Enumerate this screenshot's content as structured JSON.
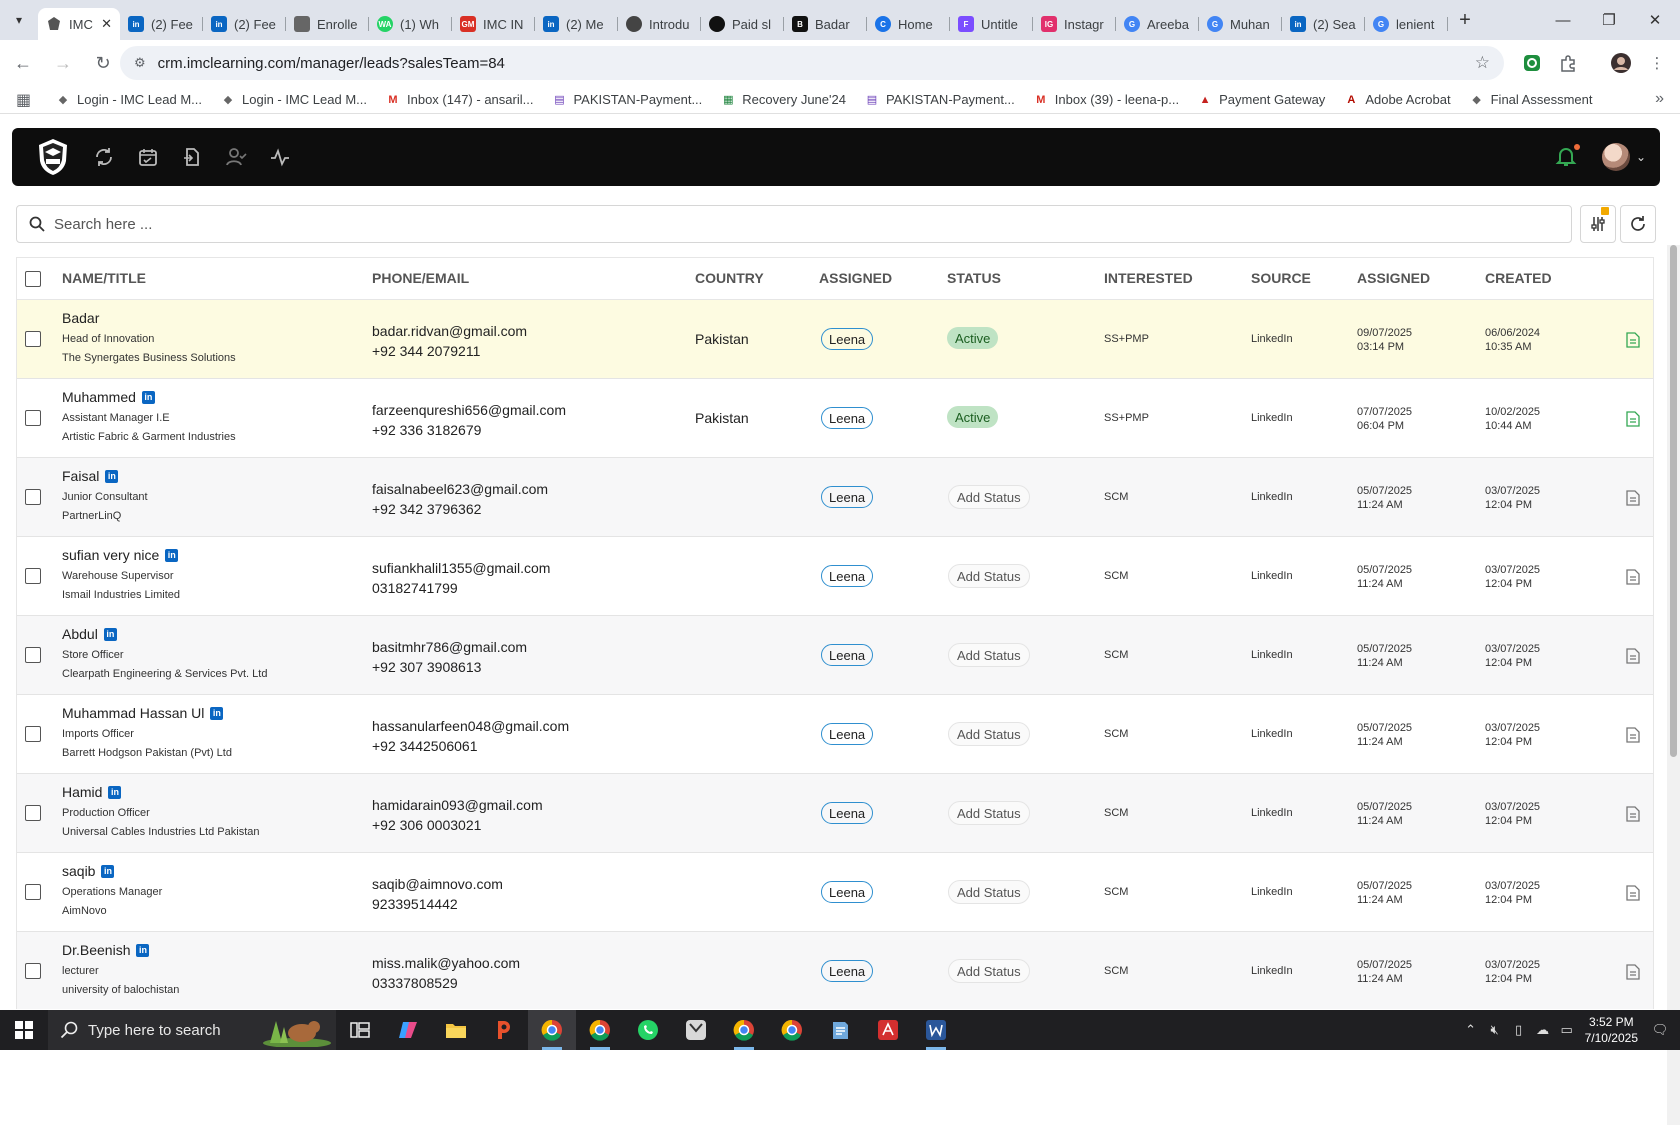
{
  "browser": {
    "active_tab": {
      "title": "IMC",
      "favicon_color": "#555555"
    },
    "tabs": [
      {
        "title": "(2) Fee",
        "favicon": "LI",
        "color": "#0a66c2"
      },
      {
        "title": "(2) Fee",
        "favicon": "LI",
        "color": "#0a66c2"
      },
      {
        "title": "Enrolle",
        "favicon": "IMC",
        "color": "#666666"
      },
      {
        "title": "(1) Wh",
        "favicon": "WA",
        "color": "#25d366"
      },
      {
        "title": "IMC IN",
        "favicon": "GM",
        "color": "#d93025"
      },
      {
        "title": "(2) Me",
        "favicon": "LI",
        "color": "#0a66c2"
      },
      {
        "title": "Introdu",
        "favicon": "GPT",
        "color": "#444444"
      },
      {
        "title": "Paid sl",
        "favicon": "GPT",
        "color": "#111111"
      },
      {
        "title": "Badar",
        "favicon": "B",
        "color": "#111111"
      },
      {
        "title": "Home",
        "favicon": "C",
        "color": "#1a73e8"
      },
      {
        "title": "Untitle",
        "favicon": "F",
        "color": "#7b4dff"
      },
      {
        "title": "Instagr",
        "favicon": "IG",
        "color": "#e1306c"
      },
      {
        "title": "Areeba",
        "favicon": "G",
        "color": "#4285f4"
      },
      {
        "title": "Muhan",
        "favicon": "G",
        "color": "#4285f4"
      },
      {
        "title": "(2) Sea",
        "favicon": "LI",
        "color": "#0a66c2"
      },
      {
        "title": "lenient",
        "favicon": "G",
        "color": "#4285f4"
      }
    ],
    "url": "crm.imclearning.com/manager/leads?salesTeam=84",
    "bookmarks": [
      {
        "label": "Login - IMC Lead M...",
        "color": "#666666",
        "glyph": "◆"
      },
      {
        "label": "Login - IMC Lead M...",
        "color": "#666666",
        "glyph": "◆"
      },
      {
        "label": "Inbox (147) - ansaril...",
        "color": "#d93025",
        "glyph": "M"
      },
      {
        "label": "PAKISTAN-Payment...",
        "color": "#673ab7",
        "glyph": "▤"
      },
      {
        "label": "Recovery June'24",
        "color": "#188038",
        "glyph": "▦"
      },
      {
        "label": "PAKISTAN-Payment...",
        "color": "#673ab7",
        "glyph": "▤"
      },
      {
        "label": "Inbox (39) - leena-p...",
        "color": "#d93025",
        "glyph": "M"
      },
      {
        "label": "Payment Gateway",
        "color": "#c5221f",
        "glyph": "▲"
      },
      {
        "label": "Adobe Acrobat",
        "color": "#b30b00",
        "glyph": "A"
      },
      {
        "label": "Final Assessment",
        "color": "#666666",
        "glyph": "◆"
      }
    ]
  },
  "app": {
    "search": {
      "placeholder": "Search here ..."
    },
    "columns": {
      "name": "NAME/TITLE",
      "contact": "PHONE/EMAIL",
      "country": "COUNTRY",
      "assigned_to": "ASSIGNED",
      "status": "STATUS",
      "interested": "INTERESTED",
      "source": "SOURCE",
      "assigned_at": "ASSIGNED",
      "created": "CREATED"
    },
    "leads": [
      {
        "name": "Badar",
        "linkedin": false,
        "title": "Head of Innovation",
        "company": "The Synergates Business Solutions",
        "email": "badar.ridvan@gmail.com",
        "phone": "+92 344 2079211",
        "country": "Pakistan",
        "assignee": "Leena",
        "status": "Active",
        "interested": "SS+PMP",
        "source": "LinkedIn",
        "assigned_date": "09/07/2025",
        "assigned_time": "03:14 PM",
        "created_date": "06/06/2024",
        "created_time": "10:35 AM"
      },
      {
        "name": "Muhammed",
        "linkedin": true,
        "title": "Assistant Manager I.E",
        "company": "Artistic Fabric & Garment Industries",
        "email": "farzeenqureshi656@gmail.com",
        "phone": "+92 336 3182679",
        "country": "Pakistan",
        "assignee": "Leena",
        "status": "Active",
        "interested": "SS+PMP",
        "source": "LinkedIn",
        "assigned_date": "07/07/2025",
        "assigned_time": "06:04 PM",
        "created_date": "10/02/2025",
        "created_time": "10:44 AM"
      },
      {
        "name": "Faisal",
        "linkedin": true,
        "title": "Junior Consultant",
        "company": "PartnerLinQ",
        "email": "faisalnabeel623@gmail.com",
        "phone": "+92 342 3796362",
        "country": "",
        "assignee": "Leena",
        "status": "Add Status",
        "interested": "SCM",
        "source": "LinkedIn",
        "assigned_date": "05/07/2025",
        "assigned_time": "11:24 AM",
        "created_date": "03/07/2025",
        "created_time": "12:04 PM"
      },
      {
        "name": "sufian very nice",
        "linkedin": true,
        "title": "Warehouse Supervisor",
        "company": "Ismail Industries Limited",
        "email": "sufiankhalil1355@gmail.com",
        "phone": "03182741799",
        "country": "",
        "assignee": "Leena",
        "status": "Add Status",
        "interested": "SCM",
        "source": "LinkedIn",
        "assigned_date": "05/07/2025",
        "assigned_time": "11:24 AM",
        "created_date": "03/07/2025",
        "created_time": "12:04 PM"
      },
      {
        "name": "Abdul",
        "linkedin": true,
        "title": "Store Officer",
        "company": "Clearpath Engineering & Services Pvt. Ltd",
        "email": "basitmhr786@gmail.com",
        "phone": "+92 307 3908613",
        "country": "",
        "assignee": "Leena",
        "status": "Add Status",
        "interested": "SCM",
        "source": "LinkedIn",
        "assigned_date": "05/07/2025",
        "assigned_time": "11:24 AM",
        "created_date": "03/07/2025",
        "created_time": "12:04 PM"
      },
      {
        "name": "Muhammad Hassan Ul",
        "linkedin": true,
        "title": "Imports Officer",
        "company": "Barrett Hodgson Pakistan (Pvt) Ltd",
        "email": "hassanularfeen048@gmail.com",
        "phone": "+92 3442506061",
        "country": "",
        "assignee": "Leena",
        "status": "Add Status",
        "interested": "SCM",
        "source": "LinkedIn",
        "assigned_date": "05/07/2025",
        "assigned_time": "11:24 AM",
        "created_date": "03/07/2025",
        "created_time": "12:04 PM"
      },
      {
        "name": "Hamid",
        "linkedin": true,
        "title": "Production Officer",
        "company": "Universal Cables Industries Ltd Pakistan",
        "email": "hamidarain093@gmail.com",
        "phone": "+92 306 0003021",
        "country": "",
        "assignee": "Leena",
        "status": "Add Status",
        "interested": "SCM",
        "source": "LinkedIn",
        "assigned_date": "05/07/2025",
        "assigned_time": "11:24 AM",
        "created_date": "03/07/2025",
        "created_time": "12:04 PM"
      },
      {
        "name": "saqib",
        "linkedin": true,
        "title": "Operations Manager",
        "company": "AimNovo",
        "email": "saqib@aimnovo.com",
        "phone": "92339514442",
        "country": "",
        "assignee": "Leena",
        "status": "Add Status",
        "interested": "SCM",
        "source": "LinkedIn",
        "assigned_date": "05/07/2025",
        "assigned_time": "11:24 AM",
        "created_date": "03/07/2025",
        "created_time": "12:04 PM"
      },
      {
        "name": "Dr.Beenish",
        "linkedin": true,
        "title": "lecturer",
        "company": "university of balochistan",
        "email": "miss.malik@yahoo.com",
        "phone": "03337808529",
        "country": "",
        "assignee": "Leena",
        "status": "Add Status",
        "interested": "SCM",
        "source": "LinkedIn",
        "assigned_date": "05/07/2025",
        "assigned_time": "11:24 AM",
        "created_date": "03/07/2025",
        "created_time": "12:04 PM"
      }
    ]
  },
  "taskbar": {
    "search_placeholder": "Type here to search",
    "time": "3:52 PM",
    "date": "7/10/2025"
  },
  "colors": {
    "highlight_row": "#fdfbe1",
    "active_status": "#bfe3c4",
    "assignee_border": "#2f8fcf",
    "linkedin": "#0a66c2",
    "doc_active": "#34a853",
    "doc_inactive": "#777777",
    "notification": "#34a853"
  }
}
